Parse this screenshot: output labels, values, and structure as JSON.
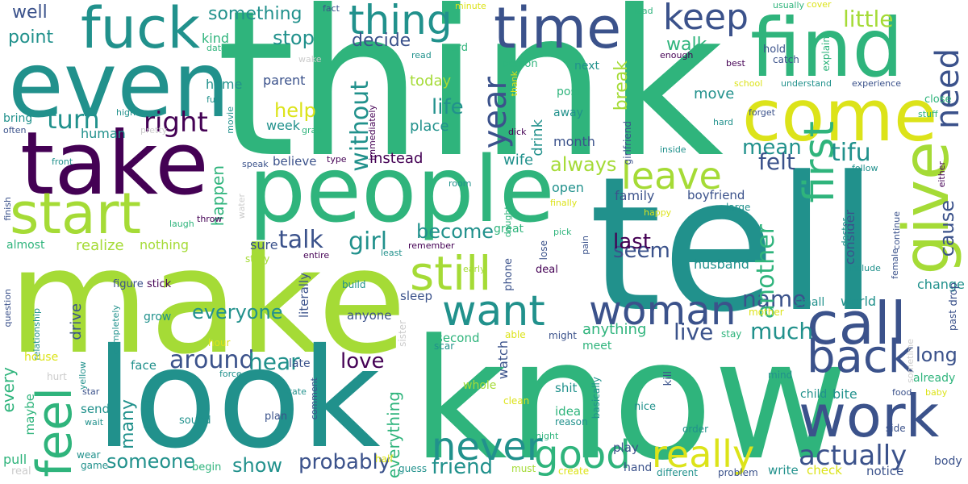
{
  "palette": {
    "purple": "#440154",
    "indigo": "#3b528b",
    "teal": "#21918c",
    "green": "#2fb47c",
    "lime": "#a5db36",
    "yellow": "#dce319",
    "grey": "#cccccc"
  },
  "words": [
    "think",
    "know",
    "tell",
    "make",
    "look",
    "people",
    "even",
    "take",
    "find",
    "come",
    "time",
    "start",
    "fuck",
    "thing",
    "give",
    "call",
    "work",
    "want",
    "woman",
    "still",
    "back",
    "feel",
    "leave",
    "first",
    "keep",
    "never",
    "good",
    "really",
    "right",
    "year",
    "need",
    "actually",
    "around",
    "talk",
    "friend",
    "life",
    "probably",
    "someone",
    "turn",
    "become",
    "tifu",
    "name",
    "much",
    "little",
    "always",
    "everyone",
    "mean",
    "felt",
    "girl",
    "stop",
    "show",
    "live",
    "something",
    "help",
    "point",
    "decide",
    "walk",
    "break",
    "another",
    "seem",
    "last",
    "hear",
    "love",
    "without",
    "well",
    "instead",
    "every",
    "cause",
    "anything",
    "long",
    "many",
    "everything",
    "today",
    "human",
    "family",
    "happen",
    "open",
    "boyfriend",
    "drink",
    "wife",
    "place",
    "month",
    "husband",
    "move",
    "change",
    "kind",
    "home",
    "parent",
    "week",
    "believe",
    "realize",
    "nothing",
    "sure",
    "story",
    "almost",
    "drive",
    "grow",
    "anyone",
    "sleep",
    "second",
    "watch",
    "meet",
    "whole",
    "shit",
    "idea",
    "face",
    "late",
    "maybe",
    "send",
    "head",
    "sound",
    "plan",
    "pull",
    "wear",
    "game",
    "real",
    "begin",
    "half",
    "guess",
    "must",
    "create",
    "different",
    "problem",
    "write",
    "check",
    "notice",
    "body",
    "child",
    "bite",
    "already",
    "small",
    "world",
    "consider",
    "include",
    "doctor",
    "continue",
    "female",
    "past",
    "drop",
    "sometime",
    "question",
    "relationship",
    "completely",
    "house",
    "yellow",
    "star",
    "wait",
    "force",
    "state",
    "comment",
    "literally",
    "figure",
    "stick",
    "build",
    "hour",
    "sister",
    "scar",
    "able",
    "might",
    "stay",
    "mother",
    "kill",
    "nice",
    "basically",
    "order",
    "side",
    "mind",
    "food",
    "baby",
    "clean",
    "reason",
    "night",
    "play",
    "hand",
    "finish",
    "hurt",
    "front",
    "laugh",
    "throw",
    "water",
    "speak",
    "type",
    "room",
    "daughter",
    "finally",
    "pick",
    "pain",
    "happy",
    "large",
    "lose",
    "least",
    "remember",
    "entire",
    "early",
    "phone",
    "deal",
    "great",
    "girlfriend",
    "inside",
    "either",
    "hard",
    "forget",
    "follow",
    "close",
    "stuff",
    "explain",
    "experience",
    "understand",
    "school",
    "best",
    "hold",
    "catch",
    "enough",
    "lead",
    "usually",
    "cover",
    "minute",
    "fact",
    "read",
    "word",
    "learn",
    "date",
    "person",
    "next",
    "wake",
    "post",
    "away",
    "thank",
    "dick",
    "immediately",
    "movie",
    "full",
    "bring",
    "often",
    "high",
    "grab",
    "pretty",
    "away"
  ]
}
